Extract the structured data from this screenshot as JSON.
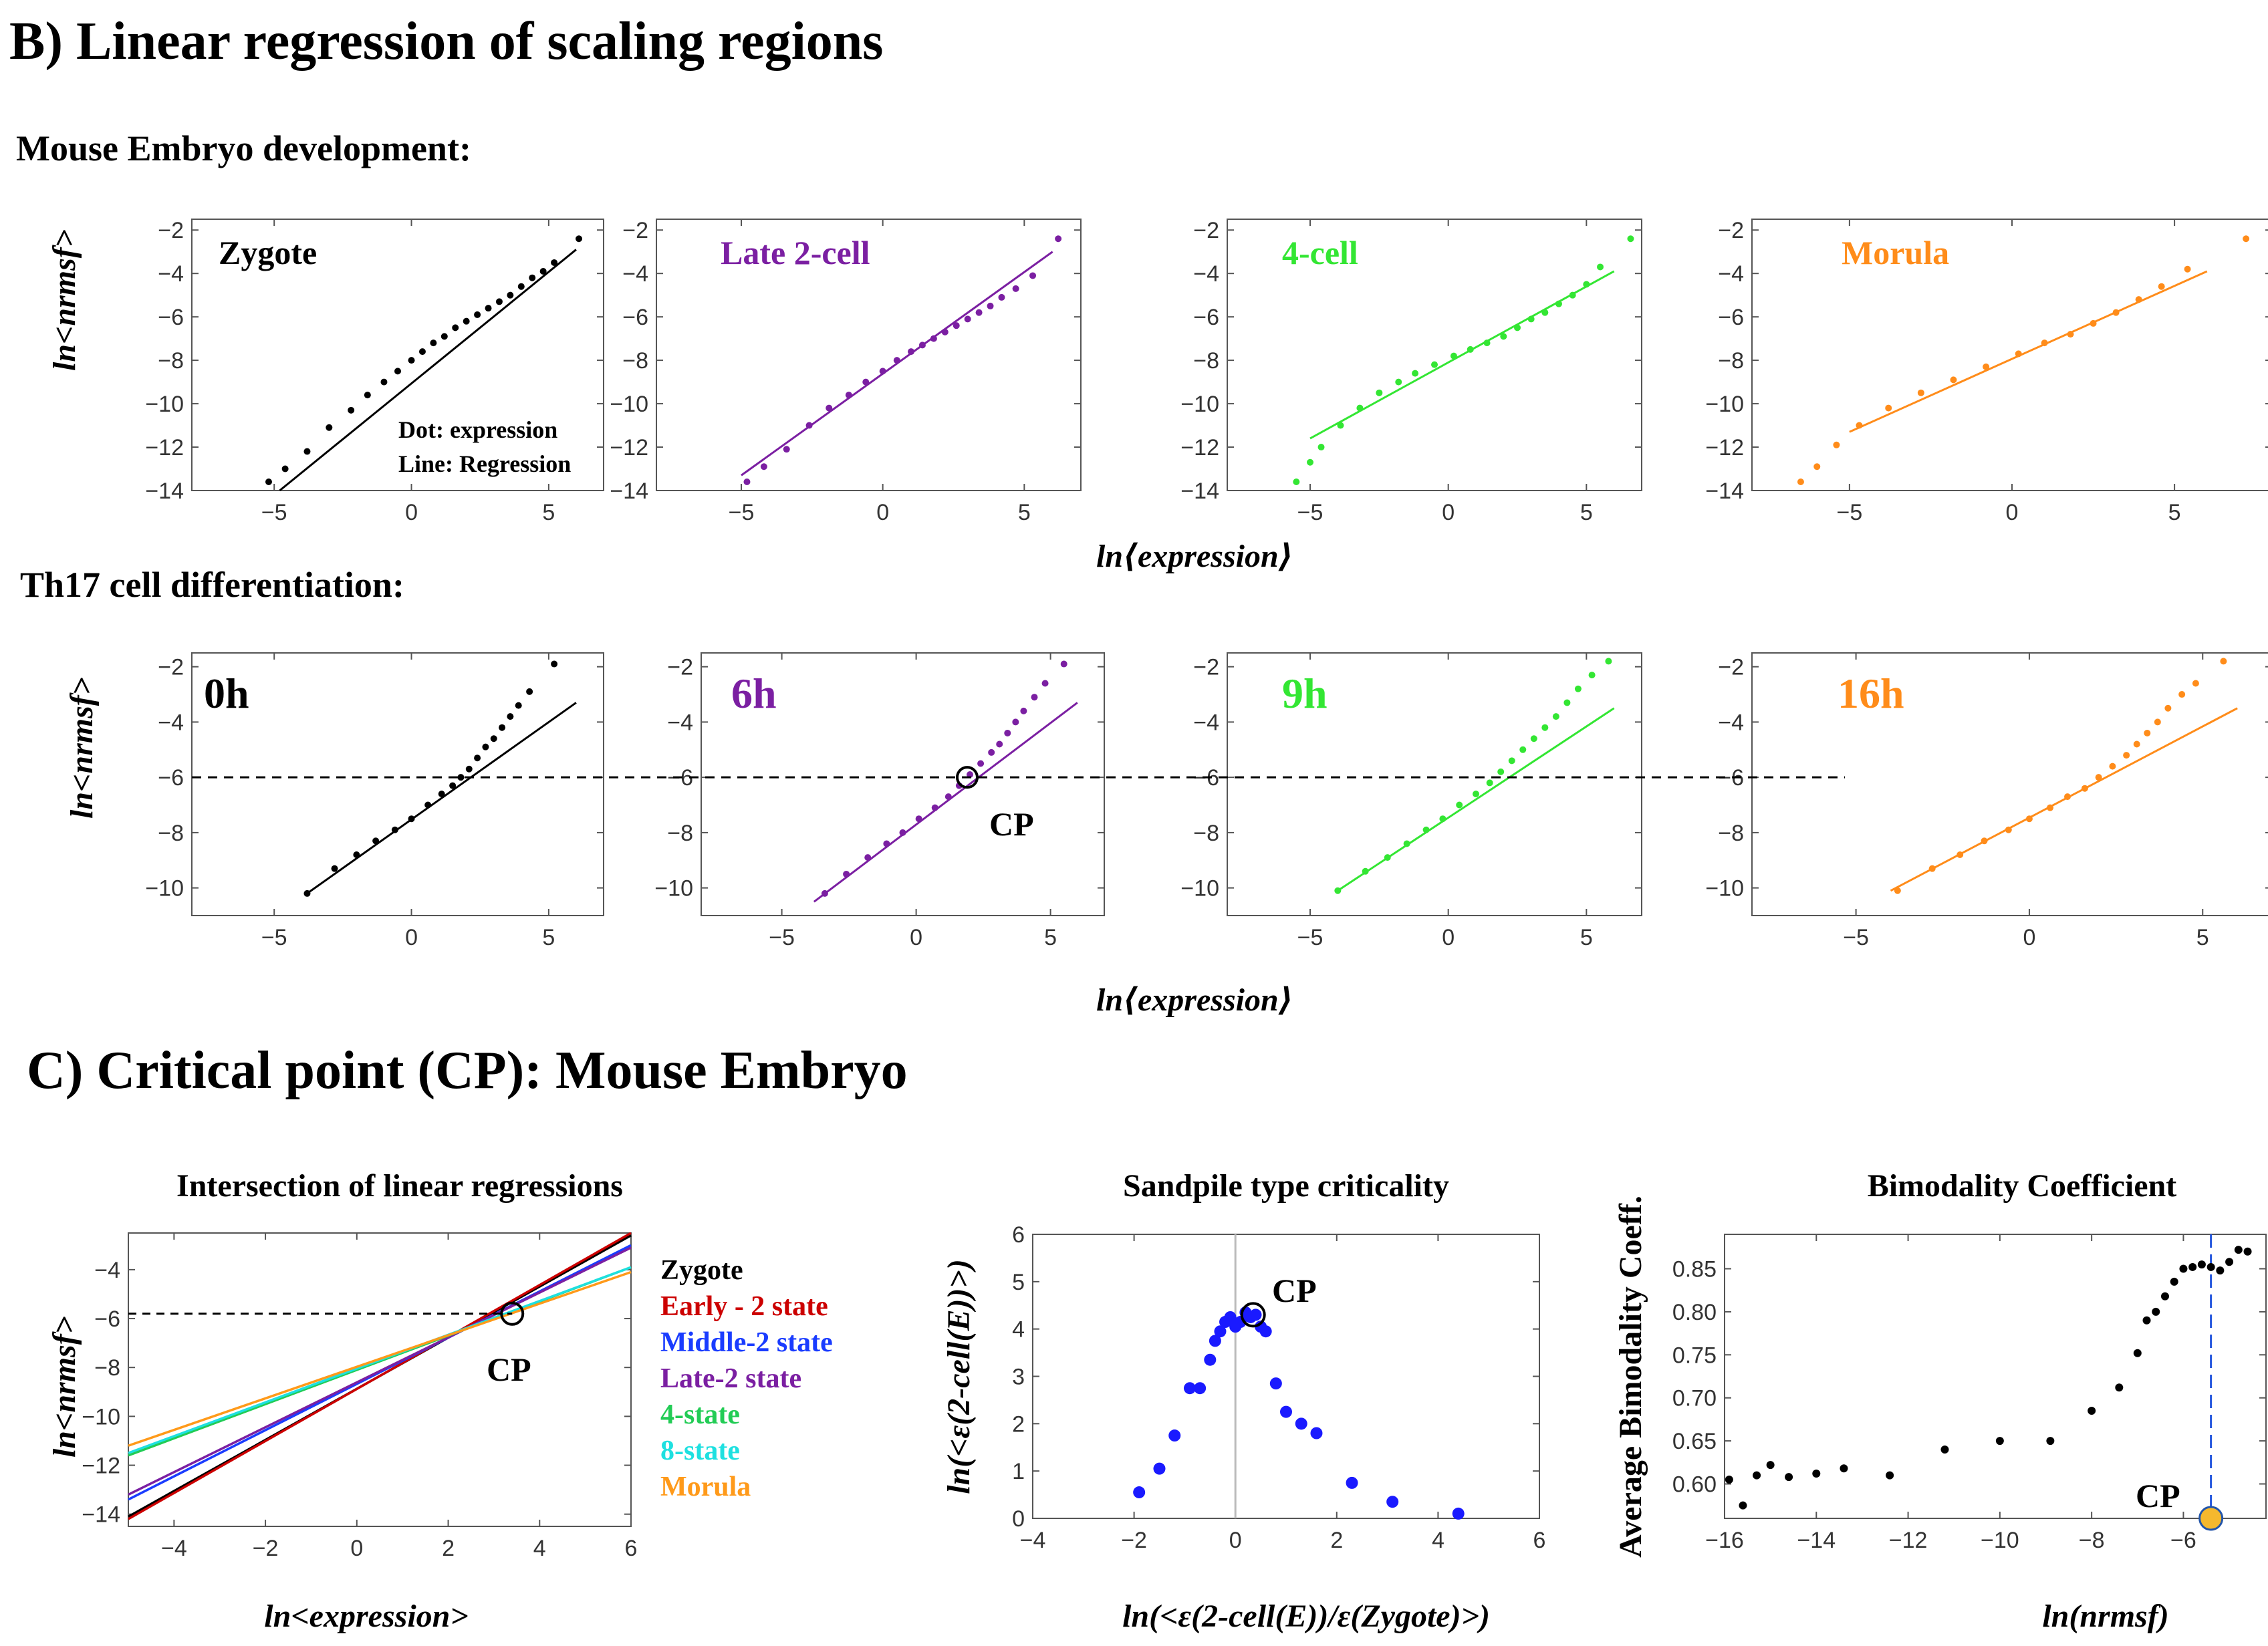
{
  "sections": {
    "b_title": "B) Linear regression of scaling regions",
    "mouse_subtitle": "Mouse Embryo development:",
    "th17_subtitle": "Th17 cell differentiation:",
    "c_title": "C) Critical point (CP): Mouse Embryo"
  },
  "labels": {
    "y_nrmsf": "ln<nrmsf>",
    "x_expression": "ln⟨expression⟩",
    "cp": "CP",
    "note_dot": "Dot: expression",
    "note_line": "Line: Regression"
  },
  "chart_data": [
    {
      "id": "mouse-zygote",
      "type": "scatter",
      "title": "Zygote",
      "color": "#000000",
      "xlim": [
        -8,
        7
      ],
      "ylim": [
        -14,
        -1.5
      ],
      "xticks": [
        -5,
        0,
        5
      ],
      "yticks": [
        -14,
        -12,
        -10,
        -8,
        -6,
        -4,
        -2
      ],
      "x": [
        -5.2,
        -4.6,
        -3.8,
        -3.0,
        -2.2,
        -1.6,
        -1.0,
        -0.5,
        0.0,
        0.4,
        0.8,
        1.2,
        1.6,
        2.0,
        2.4,
        2.8,
        3.2,
        3.6,
        4.0,
        4.4,
        4.8,
        5.2,
        6.1
      ],
      "y": [
        -13.6,
        -13.0,
        -12.2,
        -11.1,
        -10.3,
        -9.6,
        -9.0,
        -8.5,
        -8.0,
        -7.6,
        -7.2,
        -6.9,
        -6.5,
        -6.2,
        -5.9,
        -5.6,
        -5.3,
        -5.0,
        -4.6,
        -4.2,
        -3.9,
        -3.5,
        -2.4
      ],
      "regression": {
        "x1": -4.8,
        "y1": -14.0,
        "x2": 6.0,
        "y2": -2.9
      }
    },
    {
      "id": "mouse-late2",
      "type": "scatter",
      "title": "Late 2-cell",
      "color": "#7b1fa2",
      "xlim": [
        -8,
        7
      ],
      "ylim": [
        -14,
        -1.5
      ],
      "xticks": [
        -5,
        0,
        5
      ],
      "yticks": [
        -14,
        -12,
        -10,
        -8,
        -6,
        -4,
        -2
      ],
      "x": [
        -4.8,
        -4.2,
        -3.4,
        -2.6,
        -1.9,
        -1.2,
        -0.6,
        0.0,
        0.5,
        1.0,
        1.4,
        1.8,
        2.2,
        2.6,
        3.0,
        3.4,
        3.8,
        4.2,
        4.7,
        5.3,
        6.2
      ],
      "y": [
        -13.6,
        -12.9,
        -12.1,
        -11.0,
        -10.2,
        -9.6,
        -9.0,
        -8.5,
        -8.0,
        -7.6,
        -7.3,
        -7.0,
        -6.7,
        -6.4,
        -6.1,
        -5.8,
        -5.5,
        -5.1,
        -4.7,
        -4.1,
        -2.4
      ],
      "regression": {
        "x1": -5.0,
        "y1": -13.3,
        "x2": 6.0,
        "y2": -3.0
      }
    },
    {
      "id": "mouse-4cell",
      "type": "scatter",
      "title": "4-cell",
      "color": "#33e633",
      "xlim": [
        -8,
        7
      ],
      "ylim": [
        -14,
        -1.5
      ],
      "xticks": [
        -5,
        0,
        5
      ],
      "yticks": [
        -14,
        -12,
        -10,
        -8,
        -6,
        -4,
        -2
      ],
      "x": [
        -5.5,
        -5.0,
        -4.6,
        -3.9,
        -3.2,
        -2.5,
        -1.8,
        -1.2,
        -0.5,
        0.2,
        0.8,
        1.4,
        2.0,
        2.5,
        3.0,
        3.5,
        4.0,
        4.5,
        5.0,
        5.5,
        6.6
      ],
      "y": [
        -13.6,
        -12.7,
        -12.0,
        -11.0,
        -10.2,
        -9.5,
        -9.0,
        -8.6,
        -8.2,
        -7.8,
        -7.5,
        -7.2,
        -6.9,
        -6.5,
        -6.1,
        -5.8,
        -5.4,
        -5.0,
        -4.5,
        -3.7,
        -2.4
      ],
      "regression": {
        "x1": -5.0,
        "y1": -11.6,
        "x2": 6.0,
        "y2": -3.9
      }
    },
    {
      "id": "mouse-morula",
      "type": "scatter",
      "title": "Morula",
      "color": "#ff8c1a",
      "xlim": [
        -8,
        8
      ],
      "ylim": [
        -14,
        -1.5
      ],
      "xticks": [
        -5,
        0,
        5
      ],
      "yticks": [
        -14,
        -12,
        -10,
        -8,
        -6,
        -4,
        -2
      ],
      "x": [
        -6.5,
        -6.0,
        -5.4,
        -4.7,
        -3.8,
        -2.8,
        -1.8,
        -0.8,
        0.2,
        1.0,
        1.8,
        2.5,
        3.2,
        3.9,
        4.6,
        5.4,
        7.2
      ],
      "y": [
        -13.6,
        -12.9,
        -11.9,
        -11.0,
        -10.2,
        -9.5,
        -8.9,
        -8.3,
        -7.7,
        -7.2,
        -6.8,
        -6.3,
        -5.8,
        -5.2,
        -4.6,
        -3.8,
        -2.4
      ],
      "regression": {
        "x1": -5.0,
        "y1": -11.3,
        "x2": 6.0,
        "y2": -3.9
      }
    },
    {
      "id": "th17-0h",
      "type": "scatter",
      "title": "0h",
      "color": "#000000",
      "xlim": [
        -8,
        7
      ],
      "ylim": [
        -11,
        -1.5
      ],
      "xticks": [
        -5,
        0,
        5
      ],
      "yticks": [
        -10,
        -8,
        -6,
        -4,
        -2
      ],
      "x": [
        -3.8,
        -2.8,
        -2.0,
        -1.3,
        -0.6,
        0.0,
        0.6,
        1.1,
        1.5,
        1.8,
        2.1,
        2.4,
        2.7,
        3.0,
        3.3,
        3.6,
        3.9,
        4.3,
        5.2
      ],
      "y": [
        -10.2,
        -9.3,
        -8.8,
        -8.3,
        -7.9,
        -7.5,
        -7.0,
        -6.6,
        -6.3,
        -6.0,
        -5.7,
        -5.3,
        -4.9,
        -4.6,
        -4.2,
        -3.8,
        -3.4,
        -2.9,
        -1.9
      ],
      "regression": {
        "x1": -3.8,
        "y1": -10.2,
        "x2": 6.0,
        "y2": -3.3
      }
    },
    {
      "id": "th17-6h",
      "type": "scatter",
      "title": "6h",
      "color": "#7b1fa2",
      "xlim": [
        -8,
        7
      ],
      "ylim": [
        -11,
        -1.5
      ],
      "xticks": [
        -5,
        0,
        5
      ],
      "yticks": [
        -10,
        -8,
        -6,
        -4,
        -2
      ],
      "x": [
        -3.4,
        -2.6,
        -1.8,
        -1.1,
        -0.5,
        0.1,
        0.7,
        1.2,
        1.6,
        2.0,
        2.4,
        2.8,
        3.1,
        3.4,
        3.7,
        4.0,
        4.4,
        4.8,
        5.5
      ],
      "y": [
        -10.2,
        -9.5,
        -8.9,
        -8.4,
        -8.0,
        -7.5,
        -7.1,
        -6.7,
        -6.3,
        -5.9,
        -5.5,
        -5.1,
        -4.8,
        -4.4,
        -4.0,
        -3.6,
        -3.1,
        -2.6,
        -1.9
      ],
      "regression": {
        "x1": -3.8,
        "y1": -10.5,
        "x2": 6.0,
        "y2": -3.3
      }
    },
    {
      "id": "th17-9h",
      "type": "scatter",
      "title": "9h",
      "color": "#33e633",
      "xlim": [
        -8,
        7
      ],
      "ylim": [
        -11,
        -1.5
      ],
      "xticks": [
        -5,
        0,
        5
      ],
      "yticks": [
        -10,
        -8,
        -6,
        -4,
        -2
      ],
      "x": [
        -4.0,
        -3.0,
        -2.2,
        -1.5,
        -0.8,
        -0.2,
        0.4,
        1.0,
        1.5,
        1.9,
        2.3,
        2.7,
        3.1,
        3.5,
        3.9,
        4.3,
        4.7,
        5.2,
        5.8
      ],
      "y": [
        -10.1,
        -9.4,
        -8.9,
        -8.4,
        -7.9,
        -7.5,
        -7.0,
        -6.6,
        -6.2,
        -5.8,
        -5.4,
        -5.0,
        -4.6,
        -4.2,
        -3.8,
        -3.3,
        -2.8,
        -2.3,
        -1.8
      ],
      "regression": {
        "x1": -4.0,
        "y1": -10.1,
        "x2": 6.0,
        "y2": -3.5
      }
    },
    {
      "id": "th17-16h",
      "type": "scatter",
      "title": "16h",
      "color": "#ff8c1a",
      "xlim": [
        -8,
        7
      ],
      "ylim": [
        -11,
        -1.5
      ],
      "xticks": [
        -5,
        0,
        5
      ],
      "yticks": [
        -10,
        -8,
        -6,
        -4,
        -2
      ],
      "x": [
        -3.8,
        -2.8,
        -2.0,
        -1.3,
        -0.6,
        0.0,
        0.6,
        1.1,
        1.6,
        2.0,
        2.4,
        2.8,
        3.1,
        3.4,
        3.7,
        4.0,
        4.4,
        4.8,
        5.6
      ],
      "y": [
        -10.1,
        -9.3,
        -8.8,
        -8.3,
        -7.9,
        -7.5,
        -7.1,
        -6.7,
        -6.4,
        -6.0,
        -5.6,
        -5.2,
        -4.8,
        -4.4,
        -4.0,
        -3.5,
        -3.0,
        -2.6,
        -1.8
      ],
      "regression": {
        "x1": -4.0,
        "y1": -10.1,
        "x2": 6.0,
        "y2": -3.5
      }
    },
    {
      "id": "intersection",
      "type": "line",
      "title": "Intersection of linear regressions",
      "xlabel": "ln<expression>",
      "ylabel": "ln<nrmsf>",
      "xlim": [
        -5,
        6
      ],
      "ylim": [
        -14.5,
        -2.5
      ],
      "xticks": [
        -4,
        -2,
        0,
        2,
        4,
        6
      ],
      "yticks": [
        -14,
        -12,
        -10,
        -8,
        -6,
        -4
      ],
      "cp": {
        "x": 3.4,
        "y": -5.8
      },
      "series": [
        {
          "name": "Zygote",
          "color": "#000000",
          "y_at_xmin": -14.1,
          "y_at_xmax": -2.6
        },
        {
          "name": "Early - 2 state",
          "color": "#cc0000",
          "y_at_xmin": -14.2,
          "y_at_xmax": -2.5
        },
        {
          "name": "Middle-2 state",
          "color": "#1a3cff",
          "y_at_xmin": -13.4,
          "y_at_xmax": -3.0
        },
        {
          "name": "Late-2 state",
          "color": "#7b1fa2",
          "y_at_xmin": -13.2,
          "y_at_xmax": -3.1
        },
        {
          "name": "4-state",
          "color": "#22cc55",
          "y_at_xmin": -11.6,
          "y_at_xmax": -3.9
        },
        {
          "name": "8-state",
          "color": "#1ee0e0",
          "y_at_xmin": -11.5,
          "y_at_xmax": -3.9
        },
        {
          "name": "Morula",
          "color": "#ff9a1a",
          "y_at_xmin": -11.2,
          "y_at_xmax": -4.1
        }
      ]
    },
    {
      "id": "sandpile",
      "type": "scatter",
      "title": "Sandpile type criticality",
      "xlabel": "ln(<ε(2-cell(E))/ε(Zygote)>)",
      "ylabel": "ln(<ε(2-cell(E))>)",
      "xlim": [
        -4,
        6
      ],
      "ylim": [
        0,
        6
      ],
      "xticks": [
        -4,
        -2,
        0,
        2,
        4,
        6
      ],
      "yticks": [
        0,
        1,
        2,
        3,
        4,
        5,
        6
      ],
      "color": "#1a1aff",
      "cp": {
        "x": 0.35,
        "y": 4.3
      },
      "x": [
        -1.9,
        -1.5,
        -1.2,
        -0.9,
        -0.7,
        -0.5,
        -0.4,
        -0.3,
        -0.2,
        -0.1,
        0.0,
        0.1,
        0.2,
        0.3,
        0.4,
        0.5,
        0.6,
        0.8,
        1.0,
        1.3,
        1.6,
        2.3,
        3.1,
        4.4
      ],
      "y": [
        0.55,
        1.05,
        1.75,
        2.75,
        2.75,
        3.35,
        3.75,
        3.95,
        4.15,
        4.25,
        4.05,
        4.15,
        4.35,
        4.25,
        4.3,
        4.05,
        3.95,
        2.85,
        2.25,
        2.0,
        1.8,
        0.75,
        0.35,
        0.1
      ]
    },
    {
      "id": "bimodality",
      "type": "scatter",
      "title": "Bimodality Coefficient",
      "xlabel": "ln(nrmsf)",
      "ylabel": "Average Bimodality Coeff.",
      "xlim": [
        -16,
        -4.2
      ],
      "ylim": [
        0.56,
        0.89
      ],
      "xticks": [
        -16,
        -14,
        -12,
        -10,
        -8,
        -6
      ],
      "yticks": [
        0.6,
        0.65,
        0.7,
        0.75,
        0.8,
        0.85
      ],
      "color": "#000000",
      "cp": {
        "x": -5.4,
        "y": 0.56
      },
      "x": [
        -15.9,
        -15.6,
        -15.3,
        -15.0,
        -14.6,
        -14.0,
        -13.4,
        -12.4,
        -11.2,
        -10.0,
        -8.9,
        -8.0,
        -7.4,
        -7.0,
        -6.8,
        -6.6,
        -6.4,
        -6.2,
        -6.0,
        -5.8,
        -5.6,
        -5.4,
        -5.2,
        -5.0,
        -4.8,
        -4.6
      ],
      "y": [
        0.605,
        0.575,
        0.61,
        0.622,
        0.608,
        0.612,
        0.618,
        0.61,
        0.64,
        0.65,
        0.65,
        0.685,
        0.712,
        0.752,
        0.79,
        0.8,
        0.818,
        0.835,
        0.85,
        0.852,
        0.855,
        0.852,
        0.848,
        0.858,
        0.872,
        0.87
      ]
    }
  ]
}
